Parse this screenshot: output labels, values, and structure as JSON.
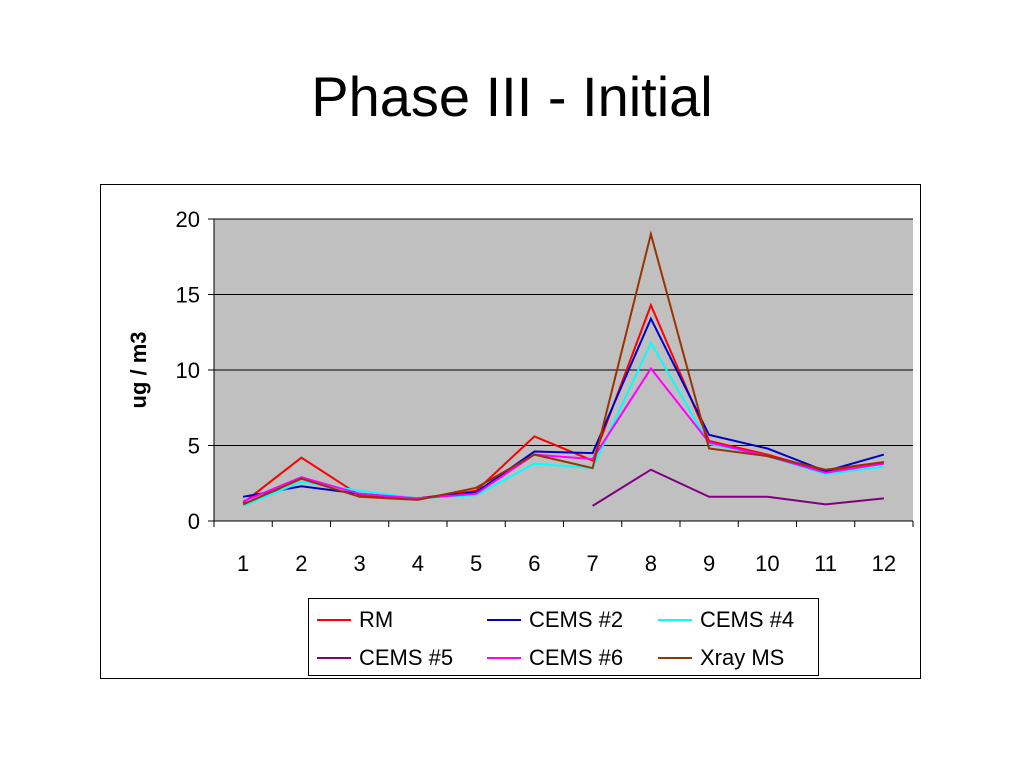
{
  "slide": {
    "title": "Phase III - Initial"
  },
  "chart_data": {
    "type": "line",
    "title": "",
    "xlabel": "",
    "ylabel": "ug / m3",
    "categories": [
      "1",
      "2",
      "3",
      "4",
      "5",
      "6",
      "7",
      "8",
      "9",
      "10",
      "11",
      "12"
    ],
    "ylim": [
      0,
      20
    ],
    "yticks": [
      "0",
      "5",
      "10",
      "15",
      "20"
    ],
    "grid": true,
    "plot_background": "#C0C0C0",
    "legend_position": "bottom",
    "series": [
      {
        "name": "RM",
        "color": "#FF0000",
        "values": [
          1.2,
          4.2,
          1.7,
          1.5,
          2.0,
          5.6,
          4.0,
          14.3,
          5.3,
          4.4,
          3.3,
          3.9
        ]
      },
      {
        "name": "CEMS #2",
        "color": "#0000CC",
        "values": [
          1.6,
          2.3,
          1.8,
          1.5,
          1.9,
          4.6,
          4.5,
          13.4,
          5.7,
          4.8,
          3.3,
          4.4
        ]
      },
      {
        "name": "CEMS #4",
        "color": "#00FFFF",
        "values": [
          1.0,
          2.6,
          2.0,
          1.5,
          1.7,
          3.8,
          3.5,
          11.8,
          5.1,
          4.3,
          3.1,
          3.6
        ]
      },
      {
        "name": "CEMS #5",
        "color": "#800080",
        "values": [
          null,
          null,
          null,
          null,
          null,
          null,
          1.0,
          3.4,
          1.6,
          1.6,
          1.1,
          1.5
        ]
      },
      {
        "name": "CEMS #6",
        "color": "#FF00FF",
        "values": [
          1.3,
          2.9,
          1.8,
          1.5,
          1.8,
          4.4,
          4.1,
          10.1,
          5.2,
          4.3,
          3.2,
          3.8
        ]
      },
      {
        "name": "Xray MS",
        "color": "#993300",
        "values": [
          1.1,
          2.8,
          1.6,
          1.4,
          2.2,
          4.4,
          3.5,
          19.0,
          4.8,
          4.3,
          3.4,
          3.9
        ]
      }
    ]
  }
}
